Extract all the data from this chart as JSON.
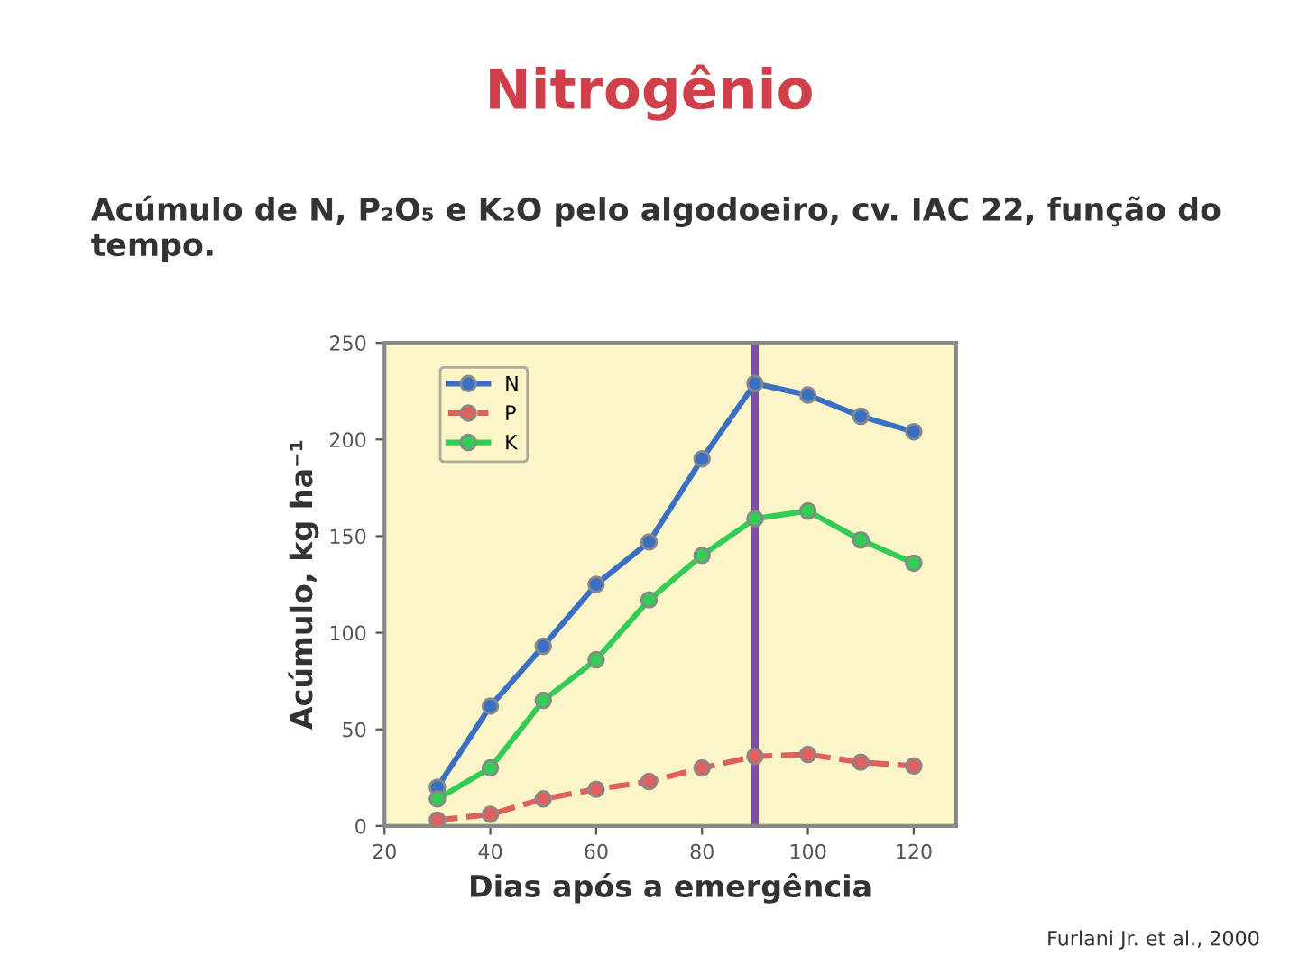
{
  "chart_data": {
    "type": "line",
    "title": "Nitrogênio",
    "subtitle": "Acúmulo de N, P₂O₅ e K₂O pelo algodoeiro, cv. IAC 22, função do tempo.",
    "xlabel": "Dias após a emergência",
    "ylabel": "Acúmulo, kg ha⁻¹",
    "x": [
      30,
      40,
      50,
      60,
      70,
      80,
      90,
      100,
      110,
      120
    ],
    "series": [
      {
        "name": "N",
        "color": "#3a6fc4",
        "values": [
          20,
          62,
          93,
          125,
          147,
          190,
          229,
          223,
          212,
          204
        ]
      },
      {
        "name": "P",
        "color": "#e06060",
        "values": [
          3,
          6,
          14,
          19,
          23,
          30,
          36,
          37,
          33,
          31
        ],
        "line_style": "dashed"
      },
      {
        "name": "K",
        "color": "#33cc55",
        "values": [
          14,
          30,
          65,
          86,
          117,
          140,
          159,
          163,
          148,
          136
        ]
      }
    ],
    "xlim": [
      20,
      128
    ],
    "ylim": [
      0,
      250
    ],
    "xticks": [
      20,
      40,
      60,
      80,
      100,
      120
    ],
    "yticks": [
      0,
      50,
      100,
      150,
      200,
      250
    ],
    "ref_lines": [
      {
        "axis": "x",
        "value": 90,
        "color": "#8050a0"
      }
    ],
    "marker": "circle",
    "legend": "top left",
    "grid": false,
    "annotations": [
      "Furlani Jr. et al., 2000"
    ]
  }
}
